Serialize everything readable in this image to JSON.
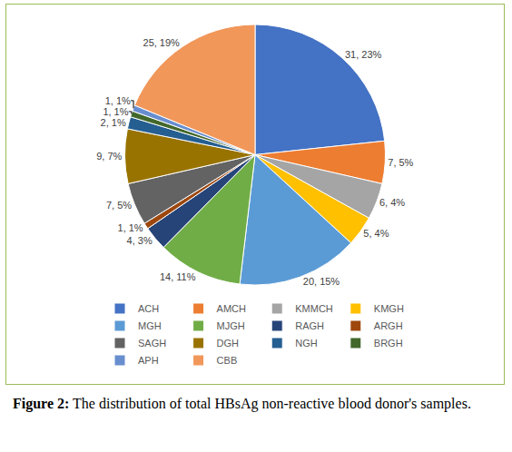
{
  "chart_data": {
    "type": "pie",
    "title": "Figure 2: The distribution of total HBsAg non-reactive blood donor's samples.",
    "categories": [
      "ACH",
      "AMCH",
      "KMMCH",
      "KMGH",
      "MGH",
      "MJGH",
      "RAGH",
      "ARGH",
      "SAGH",
      "DGH",
      "NGH",
      "BRGH",
      "APH",
      "CBB"
    ],
    "values": [
      31,
      7,
      6,
      5,
      20,
      14,
      4,
      1,
      7,
      9,
      2,
      1,
      1,
      25
    ],
    "value_labels": [
      "31, 23%",
      "7, 5%",
      "6, 4%",
      "5, 4%",
      "20, 15%",
      "14, 11%",
      "4, 3%",
      "1, 1%",
      "7, 5%",
      "9, 7%",
      "2, 1%",
      "1, 1%",
      "1, 1%",
      "25, 19%"
    ],
    "colors": [
      "#4472C4",
      "#ED7D31",
      "#A5A5A5",
      "#FFC000",
      "#5B9BD5",
      "#70AD47",
      "#264478",
      "#9E480E",
      "#636363",
      "#997300",
      "#255E91",
      "#43682B",
      "#698ED0",
      "#F1975A"
    ],
    "data_labels": true,
    "legend": "bottom"
  }
}
